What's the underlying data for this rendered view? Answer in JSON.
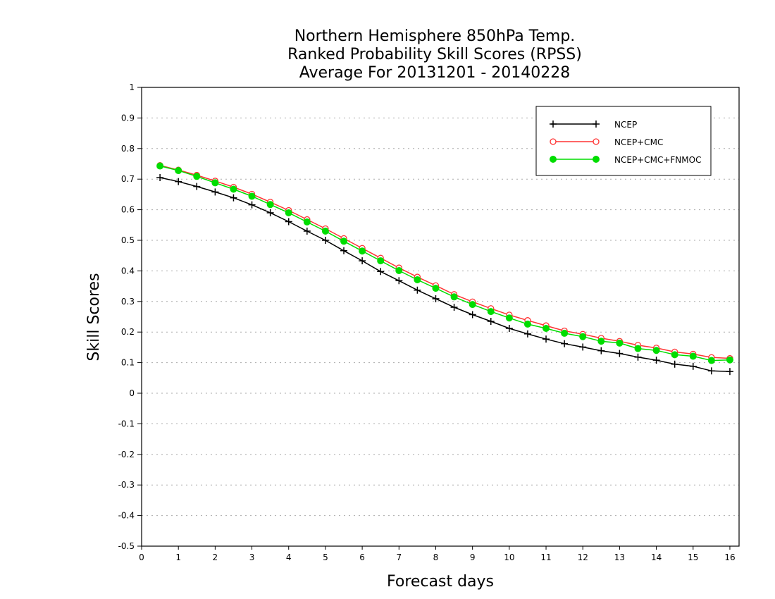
{
  "chart_data": {
    "type": "line",
    "title": [
      "Northern Hemisphere 850hPa Temp.",
      "Ranked Probability Skill Scores (RPSS)",
      "Average For 20131201 - 20140228"
    ],
    "xlabel": "Forecast days",
    "ylabel": "Skill Scores",
    "xlim": [
      0,
      16.25
    ],
    "ylim": [
      -0.5,
      1
    ],
    "xticks": [
      "0",
      "1",
      "2",
      "3",
      "4",
      "5",
      "6",
      "7",
      "8",
      "9",
      "10",
      "11",
      "12",
      "13",
      "14",
      "15",
      "16"
    ],
    "yticks": [
      "1",
      "0.9",
      "0.8",
      "0.7",
      "0.6",
      "0.5",
      "0.4",
      "0.3",
      "0.2",
      "0.1",
      "0",
      "-0.1",
      "-0.2",
      "-0.3",
      "-0.4",
      "-0.5"
    ],
    "grid": true,
    "legend_position": "top-right",
    "x": [
      0.5,
      1,
      1.5,
      2,
      2.5,
      3,
      3.5,
      4,
      4.5,
      5,
      5.5,
      6,
      6.5,
      7,
      7.5,
      8,
      8.5,
      9,
      9.5,
      10,
      10.5,
      11,
      11.5,
      12,
      12.5,
      13,
      13.5,
      14,
      14.5,
      15,
      15.5,
      16
    ],
    "series": [
      {
        "name": "NCEP",
        "color": "#000000",
        "marker": "plus",
        "values": [
          0.705,
          0.692,
          0.676,
          0.658,
          0.639,
          0.616,
          0.59,
          0.561,
          0.53,
          0.5,
          0.466,
          0.433,
          0.398,
          0.368,
          0.337,
          0.309,
          0.281,
          0.257,
          0.235,
          0.212,
          0.194,
          0.177,
          0.162,
          0.151,
          0.139,
          0.13,
          0.118,
          0.108,
          0.095,
          0.088,
          0.073,
          0.071
        ]
      },
      {
        "name": "NCEP+CMC",
        "color": "#ff3333",
        "marker": "open-circle",
        "values": [
          0.745,
          0.73,
          0.713,
          0.694,
          0.674,
          0.651,
          0.625,
          0.598,
          0.568,
          0.538,
          0.506,
          0.474,
          0.442,
          0.41,
          0.38,
          0.352,
          0.323,
          0.299,
          0.277,
          0.256,
          0.238,
          0.221,
          0.204,
          0.193,
          0.18,
          0.17,
          0.157,
          0.148,
          0.135,
          0.128,
          0.117,
          0.114
        ]
      },
      {
        "name": "NCEP+CMC+FNMOC",
        "color": "#00dd00",
        "marker": "filled-circle",
        "values": [
          0.743,
          0.728,
          0.709,
          0.688,
          0.667,
          0.644,
          0.617,
          0.59,
          0.56,
          0.53,
          0.497,
          0.465,
          0.433,
          0.401,
          0.371,
          0.343,
          0.315,
          0.29,
          0.267,
          0.246,
          0.226,
          0.212,
          0.196,
          0.185,
          0.17,
          0.164,
          0.146,
          0.14,
          0.126,
          0.121,
          0.107,
          0.109
        ]
      }
    ]
  }
}
